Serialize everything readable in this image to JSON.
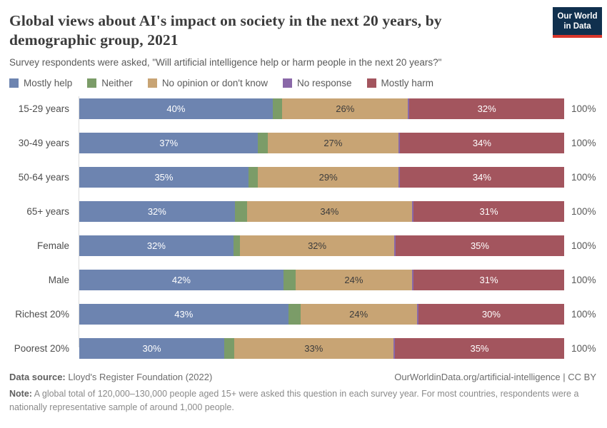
{
  "header": {
    "title_line1": "Global views about AI's impact on society in the next 20 years, by",
    "title_line2": "demographic group, 2021",
    "subtitle": "Survey respondents were asked, \"Will artificial intelligence help or harm people in the next 20 years?\"",
    "logo": {
      "line1": "Our World",
      "line2": "in Data",
      "bg_color": "#10304e",
      "accent_color": "#d8362b"
    }
  },
  "legend": [
    {
      "label": "Mostly help",
      "color": "#6d84b0"
    },
    {
      "label": "Neither",
      "color": "#7b9c68"
    },
    {
      "label": "No opinion or don't know",
      "color": "#c8a474"
    },
    {
      "label": "No response",
      "color": "#8a68a8"
    },
    {
      "label": "Mostly harm",
      "color": "#a3555e"
    }
  ],
  "chart_data": {
    "type": "bar",
    "orientation": "horizontal-stacked",
    "unit": "%",
    "xlim": [
      0,
      100
    ],
    "grid": false,
    "legend_position": "top",
    "row_total_label": "100%",
    "categories": [
      "15-29 years",
      "30-49 years",
      "50-64 years",
      "65+ years",
      "Female",
      "Male",
      "Richest 20%",
      "Poorest 20%"
    ],
    "series": [
      {
        "name": "Mostly help",
        "color": "#6d84b0",
        "text_color": "#ffffff",
        "show_value_labels": true,
        "values": [
          40,
          37,
          35,
          32,
          32,
          42,
          43,
          30
        ]
      },
      {
        "name": "Neither",
        "color": "#7b9c68",
        "text_color": "#ffffff",
        "show_value_labels": false,
        "values": [
          2,
          2,
          2,
          2.5,
          1.4,
          2.5,
          2.5,
          2
        ]
      },
      {
        "name": "No opinion or don't know",
        "color": "#c8a474",
        "text_color": "#3c3c3c",
        "show_value_labels": true,
        "values": [
          26,
          27,
          29,
          34,
          32,
          24,
          24,
          33
        ]
      },
      {
        "name": "No response",
        "color": "#8a68a8",
        "text_color": "#ffffff",
        "show_value_labels": false,
        "values": [
          0.3,
          0.3,
          0.3,
          0.3,
          0.3,
          0.3,
          0.3,
          0.3
        ]
      },
      {
        "name": "Mostly harm",
        "color": "#a3555e",
        "text_color": "#ffffff",
        "show_value_labels": true,
        "values": [
          32,
          34,
          34,
          31,
          35,
          31,
          30,
          35
        ]
      }
    ]
  },
  "footer": {
    "source_label": "Data source:",
    "source_text": "Lloyd's Register Foundation (2022)",
    "attribution": "OurWorldinData.org/artificial-intelligence | CC BY",
    "note_label": "Note:",
    "note_text": "A global total of 120,000–130,000 people aged 15+ were asked this question in each survey year. For most countries, respondents were a nationally representative sample of around 1,000 people."
  }
}
